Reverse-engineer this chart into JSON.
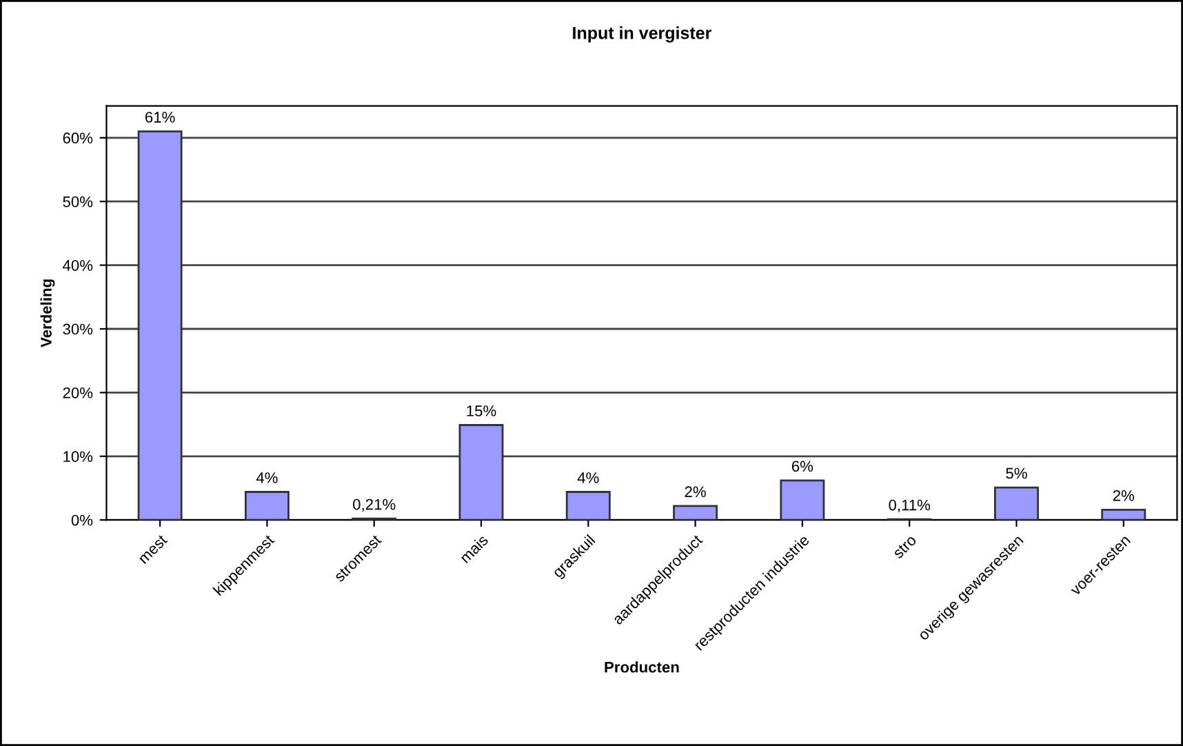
{
  "chart_data": {
    "type": "bar",
    "title": "Input in vergister",
    "xlabel": "Producten",
    "ylabel": "Verdeling",
    "categories": [
      "mest",
      "kippenmest",
      "stromest",
      "mais",
      "graskuil",
      "aardappelproduct",
      "restproducten industrie",
      "stro",
      "overige gewasresten",
      "voer-resten"
    ],
    "values": [
      61,
      4.4,
      0.21,
      14.9,
      4.4,
      2.2,
      6.2,
      0.11,
      5.1,
      1.6
    ],
    "value_labels": [
      "61%",
      "4%",
      "0,21%",
      "15%",
      "4%",
      "2%",
      "6%",
      "0,11%",
      "5%",
      "2%"
    ],
    "color": "#9999ff",
    "ylim": [
      0,
      65
    ],
    "yticks": [
      {
        "value": 0,
        "label": "0%"
      },
      {
        "value": 10,
        "label": "10%"
      },
      {
        "value": 20,
        "label": "20%"
      },
      {
        "value": 30,
        "label": "30%"
      },
      {
        "value": 40,
        "label": "40%"
      },
      {
        "value": 50,
        "label": "50%"
      },
      {
        "value": 60,
        "label": "60%"
      }
    ],
    "grid": "y",
    "legend": false
  }
}
